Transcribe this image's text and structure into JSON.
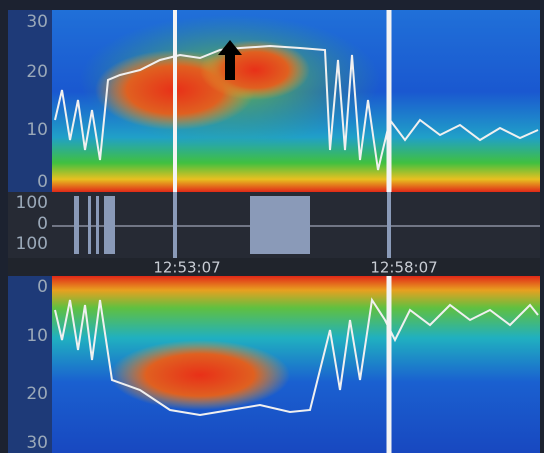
{
  "top_panel": {
    "y_labels": [
      "30",
      "20",
      "10",
      "0"
    ]
  },
  "middle_panel": {
    "labels": [
      "100",
      "0",
      "100"
    ],
    "times": [
      "12:53:07",
      "12:58:07"
    ]
  },
  "bottom_panel": {
    "y_labels": [
      "0",
      "10",
      "20",
      "30"
    ]
  }
}
